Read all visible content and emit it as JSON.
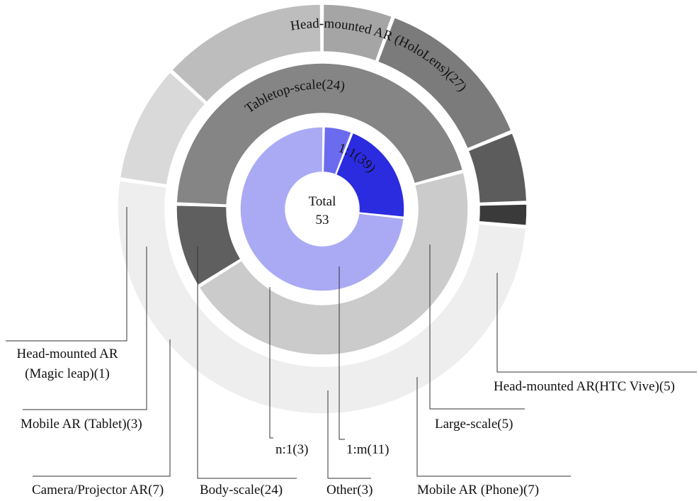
{
  "chart_data": {
    "type": "sunburst",
    "title": "",
    "center": {
      "label": "Total",
      "value": "53"
    },
    "rings": [
      {
        "name": "",
        "total": 53,
        "segments": [
          {
            "label": "1:1(39)",
            "value": 39,
            "color": "#aaaaf4"
          },
          {
            "label": "1:m(11)",
            "value": 11,
            "color": "#2b2be0"
          },
          {
            "label": "n:1(3)",
            "value": 3,
            "color": "#6b6bf0"
          }
        ]
      },
      {
        "name": "",
        "total": 53,
        "segments": [
          {
            "label": "Tabletop-scale(24)",
            "value": 24,
            "color": "#cbcbcb"
          },
          {
            "label": "Large-scale(5)",
            "value": 5,
            "color": "#5f5f5f"
          },
          {
            "label": "Body-scale(24)",
            "value": 24,
            "color": "#858585"
          }
        ]
      },
      {
        "name": "",
        "total": 53,
        "segments": [
          {
            "label": "Head-mounted AR (HoloLens)(27)",
            "value": 27,
            "color": "#eeeeee"
          },
          {
            "label": "Head-mounted AR(HTC Vive)(5)",
            "value": 5,
            "color": "#d9d9d9"
          },
          {
            "label": "Mobile AR (Phone)(7)",
            "value": 7,
            "color": "#bdbdbd"
          },
          {
            "label": "Other(3)",
            "value": 3,
            "color": "#a5a5a5"
          },
          {
            "label": "Camera/Projector AR(7)",
            "value": 7,
            "color": "#7b7b7b"
          },
          {
            "label": "Mobile AR (Tablet)(3)",
            "value": 3,
            "color": "#5c5c5c"
          },
          {
            "label": "Head-mounted AR\n(Magic leap)(1)",
            "value": 1,
            "color": "#3a3a3a"
          }
        ]
      }
    ],
    "legend": "none",
    "grid": false
  }
}
